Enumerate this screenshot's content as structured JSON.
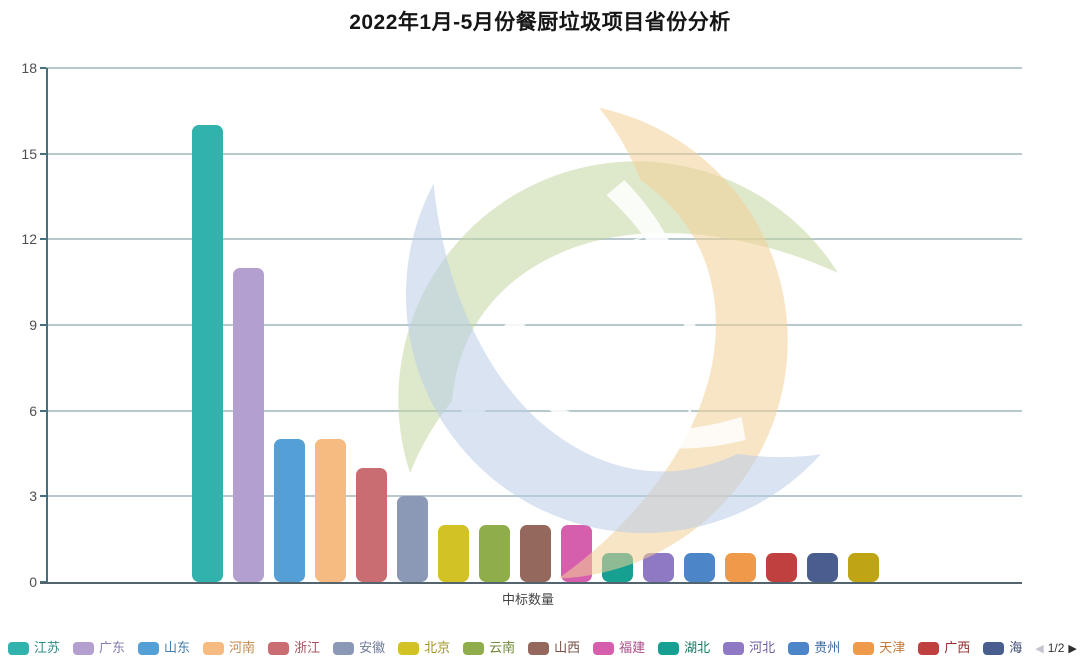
{
  "title": "2022年1月-5月份餐厨垃圾项目省份分析",
  "chart_data": {
    "type": "bar",
    "title": "2022年1月-5月份餐厨垃圾项目省份分析",
    "xlabel": "中标数量",
    "ylabel": "",
    "ylim": [
      0,
      18
    ],
    "yticks": [
      0,
      3,
      6,
      9,
      12,
      15,
      18
    ],
    "grid": true,
    "legend_position": "bottom",
    "categories": [
      "江苏",
      "广东",
      "山东",
      "河南",
      "浙江",
      "安徽",
      "北京",
      "云南",
      "山西",
      "福建",
      "湖北",
      "河北",
      "贵州",
      "天津",
      "广西",
      "海",
      ""
    ],
    "values": [
      16,
      11,
      5,
      5,
      4,
      3,
      2,
      2,
      2,
      2,
      1,
      1,
      1,
      1,
      1,
      1,
      1
    ],
    "colors": [
      "#31b2ac",
      "#b3a0d1",
      "#54a0d6",
      "#f5bb80",
      "#c96d73",
      "#8c99b6",
      "#d3c226",
      "#8fae4b",
      "#95685e",
      "#d65fad",
      "#16a092",
      "#9079c4",
      "#4d86c8",
      "#ef9a4a",
      "#bf403e",
      "#495d8e",
      "#bfa513"
    ]
  },
  "axis": {
    "x_label": "中标数量",
    "y_tick_labels": [
      "0",
      "3",
      "6",
      "9",
      "12",
      "15",
      "18"
    ]
  },
  "legend": {
    "items": [
      {
        "label": "江苏",
        "color": "#31b2ac",
        "text_color": "#2b8c86"
      },
      {
        "label": "广东",
        "color": "#b3a0d1",
        "text_color": "#8b7bac"
      },
      {
        "label": "山东",
        "color": "#54a0d6",
        "text_color": "#427eae"
      },
      {
        "label": "河南",
        "color": "#f5bb80",
        "text_color": "#c08a50"
      },
      {
        "label": "浙江",
        "color": "#c96d73",
        "text_color": "#a1545e"
      },
      {
        "label": "安徽",
        "color": "#8c99b6",
        "text_color": "#6e7b98"
      },
      {
        "label": "北京",
        "color": "#d3c226",
        "text_color": "#a3961d"
      },
      {
        "label": "云南",
        "color": "#8fae4b",
        "text_color": "#70883a"
      },
      {
        "label": "山西",
        "color": "#95685e",
        "text_color": "#774f46"
      },
      {
        "label": "福建",
        "color": "#d65fad",
        "text_color": "#ab4b89"
      },
      {
        "label": "湖北",
        "color": "#16a092",
        "text_color": "#117b64"
      },
      {
        "label": "河北",
        "color": "#9079c4",
        "text_color": "#725f9e"
      },
      {
        "label": "贵州",
        "color": "#4d86c8",
        "text_color": "#3c699f"
      },
      {
        "label": "天津",
        "color": "#ef9a4a",
        "text_color": "#c17a38"
      },
      {
        "label": "广西",
        "color": "#bf403e",
        "text_color": "#962f2e"
      },
      {
        "label": "海",
        "color": "#495d8e",
        "text_color": "#3a4a73"
      }
    ],
    "pager": {
      "prev_icon": "◀",
      "text": "1/2",
      "next_icon": "▶"
    }
  },
  "watermark": {
    "leaf_colors": {
      "green": "#c3d5a0",
      "orange": "#f3cf96",
      "blue": "#b9cce8"
    }
  }
}
